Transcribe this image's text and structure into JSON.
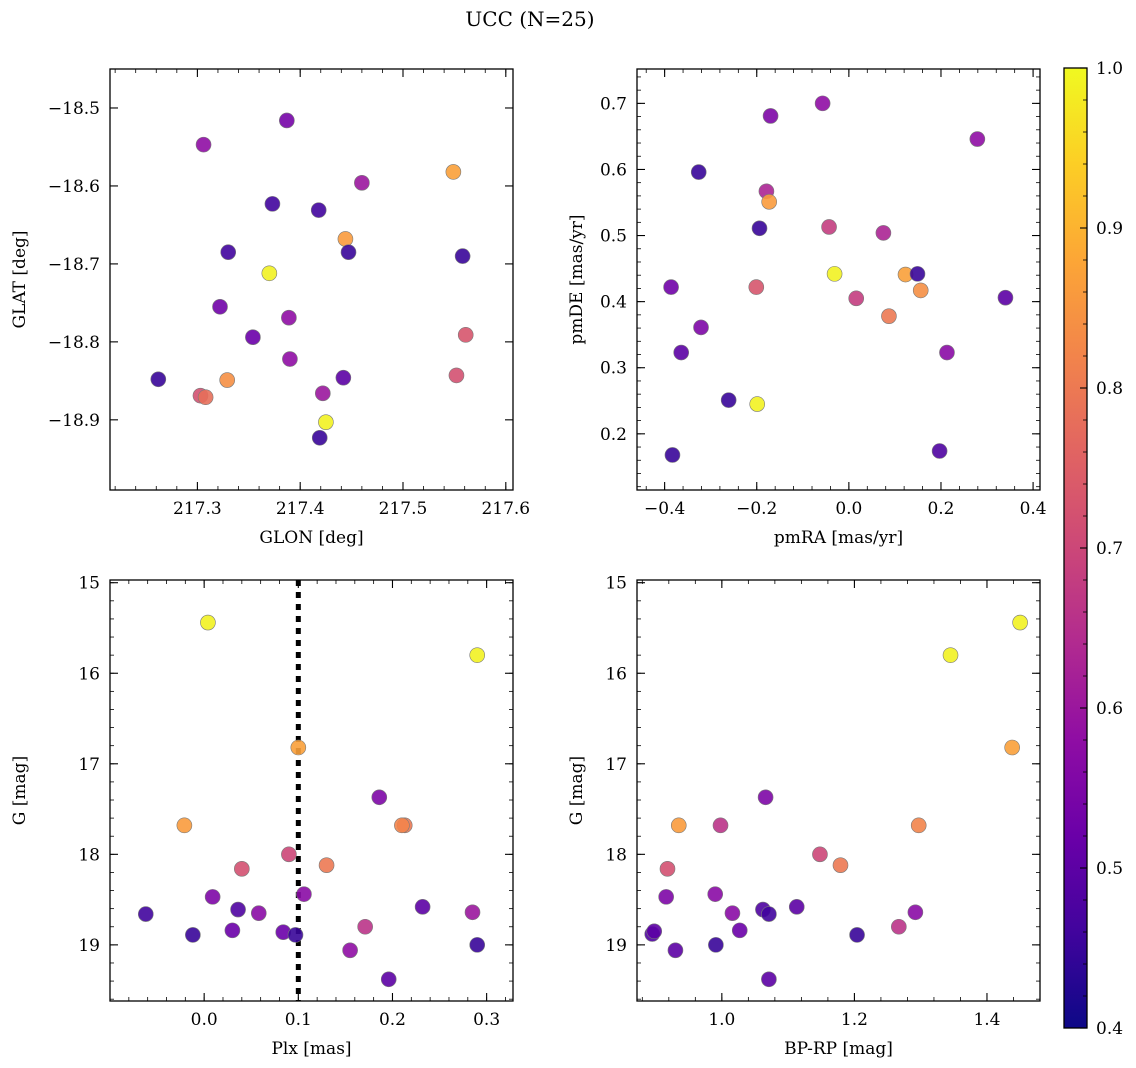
{
  "figure": {
    "title": "UCC (N=25)",
    "colorbar": {
      "min": 0.4,
      "max": 1.0,
      "ticks": [
        "0.4",
        "0.5",
        "0.6",
        "0.7",
        "0.8",
        "0.9",
        "1.0"
      ],
      "cmap_stops": [
        "#0d0887",
        "#41049d",
        "#6a00a8",
        "#8f0da4",
        "#b12a90",
        "#cc4778",
        "#e16462",
        "#f2844b",
        "#fca636",
        "#fcce25",
        "#f0f921"
      ]
    }
  },
  "chart_data": [
    {
      "type": "scatter",
      "id": "sky",
      "xlabel": "GLON [deg]",
      "ylabel": "GLAT [deg]",
      "xlim": [
        217.215,
        217.607
      ],
      "ylim": [
        -18.99,
        -18.45
      ],
      "invert_y": false,
      "xticks": [
        "217.3",
        "217.4",
        "217.5",
        "217.6"
      ],
      "yticks": [
        "−18.5",
        "−18.6",
        "−18.7",
        "−18.8",
        "−18.9"
      ],
      "points": [
        {
          "x": 217.262,
          "y": -18.848,
          "c": 0.45
        },
        {
          "x": 217.303,
          "y": -18.869,
          "c": 0.72
        },
        {
          "x": 217.308,
          "y": -18.871,
          "c": 0.78
        },
        {
          "x": 217.306,
          "y": -18.547,
          "c": 0.58
        },
        {
          "x": 217.322,
          "y": -18.755,
          "c": 0.53
        },
        {
          "x": 217.329,
          "y": -18.849,
          "c": 0.84
        },
        {
          "x": 217.33,
          "y": -18.685,
          "c": 0.46
        },
        {
          "x": 217.354,
          "y": -18.794,
          "c": 0.52
        },
        {
          "x": 217.37,
          "y": -18.712,
          "c": 0.99
        },
        {
          "x": 217.373,
          "y": -18.623,
          "c": 0.46
        },
        {
          "x": 217.387,
          "y": -18.516,
          "c": 0.54
        },
        {
          "x": 217.389,
          "y": -18.769,
          "c": 0.58
        },
        {
          "x": 217.39,
          "y": -18.822,
          "c": 0.58
        },
        {
          "x": 217.418,
          "y": -18.631,
          "c": 0.46
        },
        {
          "x": 217.419,
          "y": -18.923,
          "c": 0.45
        },
        {
          "x": 217.422,
          "y": -18.866,
          "c": 0.6
        },
        {
          "x": 217.425,
          "y": -18.903,
          "c": 0.99
        },
        {
          "x": 217.442,
          "y": -18.846,
          "c": 0.5
        },
        {
          "x": 217.444,
          "y": -18.668,
          "c": 0.86
        },
        {
          "x": 217.447,
          "y": -18.685,
          "c": 0.45
        },
        {
          "x": 217.46,
          "y": -18.596,
          "c": 0.6
        },
        {
          "x": 217.549,
          "y": -18.582,
          "c": 0.87
        },
        {
          "x": 217.552,
          "y": -18.843,
          "c": 0.72
        },
        {
          "x": 217.558,
          "y": -18.69,
          "c": 0.45
        },
        {
          "x": 217.561,
          "y": -18.791,
          "c": 0.73
        }
      ]
    },
    {
      "type": "scatter",
      "id": "pm",
      "xlabel": "pmRA [mas/yr]",
      "ylabel": "pmDE [mas/yr]",
      "xlim": [
        -0.46,
        0.415
      ],
      "ylim": [
        0.115,
        0.752
      ],
      "invert_y": false,
      "xticks": [
        "−0.4",
        "−0.2",
        "0.0",
        "0.2",
        "0.4"
      ],
      "yticks": [
        "0.2",
        "0.3",
        "0.4",
        "0.5",
        "0.6",
        "0.7"
      ],
      "points": [
        {
          "x": -0.386,
          "y": 0.422,
          "c": 0.53
        },
        {
          "x": -0.383,
          "y": 0.168,
          "c": 0.45
        },
        {
          "x": -0.364,
          "y": 0.323,
          "c": 0.5
        },
        {
          "x": -0.326,
          "y": 0.596,
          "c": 0.45
        },
        {
          "x": -0.321,
          "y": 0.361,
          "c": 0.55
        },
        {
          "x": -0.261,
          "y": 0.251,
          "c": 0.45
        },
        {
          "x": -0.201,
          "y": 0.422,
          "c": 0.73
        },
        {
          "x": -0.199,
          "y": 0.245,
          "c": 0.99
        },
        {
          "x": -0.194,
          "y": 0.511,
          "c": 0.45
        },
        {
          "x": -0.179,
          "y": 0.567,
          "c": 0.63
        },
        {
          "x": -0.173,
          "y": 0.551,
          "c": 0.86
        },
        {
          "x": -0.17,
          "y": 0.681,
          "c": 0.55
        },
        {
          "x": -0.057,
          "y": 0.7,
          "c": 0.58
        },
        {
          "x": -0.043,
          "y": 0.513,
          "c": 0.68
        },
        {
          "x": -0.031,
          "y": 0.442,
          "c": 0.99
        },
        {
          "x": 0.016,
          "y": 0.405,
          "c": 0.68
        },
        {
          "x": 0.075,
          "y": 0.504,
          "c": 0.63
        },
        {
          "x": 0.087,
          "y": 0.378,
          "c": 0.8
        },
        {
          "x": 0.123,
          "y": 0.441,
          "c": 0.87
        },
        {
          "x": 0.149,
          "y": 0.442,
          "c": 0.45
        },
        {
          "x": 0.156,
          "y": 0.417,
          "c": 0.84
        },
        {
          "x": 0.197,
          "y": 0.174,
          "c": 0.48
        },
        {
          "x": 0.213,
          "y": 0.323,
          "c": 0.57
        },
        {
          "x": 0.279,
          "y": 0.646,
          "c": 0.58
        },
        {
          "x": 0.34,
          "y": 0.406,
          "c": 0.5
        }
      ]
    },
    {
      "type": "scatter",
      "id": "plx",
      "xlabel": "Plx [mas]",
      "ylabel": "G [mag]",
      "xlim": [
        -0.1,
        0.328
      ],
      "ylim": [
        14.97,
        19.62
      ],
      "invert_y": true,
      "vline": 0.1,
      "xticks": [
        "0.0",
        "0.1",
        "0.2",
        "0.3"
      ],
      "yticks": [
        "15",
        "16",
        "17",
        "18",
        "19"
      ],
      "points": [
        {
          "x": -0.062,
          "y": 18.66,
          "c": 0.46
        },
        {
          "x": -0.021,
          "y": 17.68,
          "c": 0.86
        },
        {
          "x": -0.012,
          "y": 18.89,
          "c": 0.45
        },
        {
          "x": 0.004,
          "y": 15.44,
          "c": 0.99
        },
        {
          "x": 0.009,
          "y": 18.47,
          "c": 0.55
        },
        {
          "x": 0.03,
          "y": 18.84,
          "c": 0.52
        },
        {
          "x": 0.036,
          "y": 18.61,
          "c": 0.48
        },
        {
          "x": 0.04,
          "y": 18.16,
          "c": 0.72
        },
        {
          "x": 0.058,
          "y": 18.65,
          "c": 0.57
        },
        {
          "x": 0.084,
          "y": 18.86,
          "c": 0.52
        },
        {
          "x": 0.09,
          "y": 18.0,
          "c": 0.7
        },
        {
          "x": 0.097,
          "y": 18.89,
          "c": 0.45
        },
        {
          "x": 0.1,
          "y": 16.82,
          "c": 0.87
        },
        {
          "x": 0.106,
          "y": 18.44,
          "c": 0.57
        },
        {
          "x": 0.13,
          "y": 18.12,
          "c": 0.8
        },
        {
          "x": 0.155,
          "y": 19.06,
          "c": 0.58
        },
        {
          "x": 0.171,
          "y": 18.8,
          "c": 0.66
        },
        {
          "x": 0.186,
          "y": 17.37,
          "c": 0.55
        },
        {
          "x": 0.196,
          "y": 19.38,
          "c": 0.5
        },
        {
          "x": 0.213,
          "y": 17.68,
          "c": 0.8
        },
        {
          "x": 0.21,
          "y": 17.68,
          "c": 0.82
        },
        {
          "x": 0.232,
          "y": 18.58,
          "c": 0.5
        },
        {
          "x": 0.285,
          "y": 18.64,
          "c": 0.6
        },
        {
          "x": 0.29,
          "y": 19.0,
          "c": 0.45
        },
        {
          "x": 0.29,
          "y": 15.8,
          "c": 0.99
        }
      ]
    },
    {
      "type": "scatter",
      "id": "cmd",
      "xlabel": "BP-RP [mag]",
      "ylabel": "G [mag]",
      "xlim": [
        0.872,
        1.48
      ],
      "ylim": [
        14.97,
        19.62
      ],
      "invert_y": true,
      "xticks": [
        "1.0",
        "1.2",
        "1.4"
      ],
      "yticks": [
        "15",
        "16",
        "17",
        "18",
        "19"
      ],
      "points": [
        {
          "x": 0.895,
          "y": 18.88,
          "c": 0.48
        },
        {
          "x": 0.898,
          "y": 18.85,
          "c": 0.5
        },
        {
          "x": 0.916,
          "y": 18.47,
          "c": 0.55
        },
        {
          "x": 0.918,
          "y": 18.16,
          "c": 0.72
        },
        {
          "x": 0.93,
          "y": 19.06,
          "c": 0.5
        },
        {
          "x": 0.935,
          "y": 17.68,
          "c": 0.86
        },
        {
          "x": 0.99,
          "y": 18.44,
          "c": 0.57
        },
        {
          "x": 0.991,
          "y": 19.0,
          "c": 0.45
        },
        {
          "x": 0.998,
          "y": 17.68,
          "c": 0.66
        },
        {
          "x": 1.016,
          "y": 18.65,
          "c": 0.57
        },
        {
          "x": 1.027,
          "y": 18.84,
          "c": 0.52
        },
        {
          "x": 1.062,
          "y": 18.61,
          "c": 0.48
        },
        {
          "x": 1.066,
          "y": 17.37,
          "c": 0.55
        },
        {
          "x": 1.071,
          "y": 18.66,
          "c": 0.46
        },
        {
          "x": 1.071,
          "y": 19.38,
          "c": 0.5
        },
        {
          "x": 1.113,
          "y": 18.58,
          "c": 0.5
        },
        {
          "x": 1.148,
          "y": 18.0,
          "c": 0.7
        },
        {
          "x": 1.179,
          "y": 18.12,
          "c": 0.8
        },
        {
          "x": 1.204,
          "y": 18.89,
          "c": 0.45
        },
        {
          "x": 1.267,
          "y": 18.8,
          "c": 0.66
        },
        {
          "x": 1.292,
          "y": 18.64,
          "c": 0.57
        },
        {
          "x": 1.297,
          "y": 17.68,
          "c": 0.82
        },
        {
          "x": 1.345,
          "y": 15.8,
          "c": 0.99
        },
        {
          "x": 1.438,
          "y": 16.82,
          "c": 0.87
        },
        {
          "x": 1.45,
          "y": 15.44,
          "c": 0.99
        }
      ]
    }
  ]
}
